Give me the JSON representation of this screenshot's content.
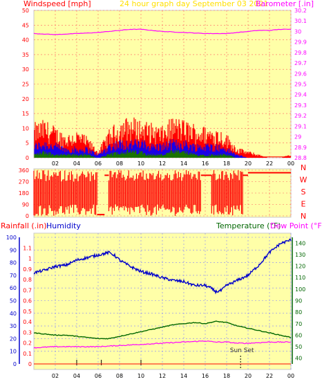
{
  "header": {
    "left_label": "Windspeed [mph]",
    "center_label": "24 hour graph day   September 03 2021",
    "right_label": "Barometer [.in]"
  },
  "colors": {
    "plot_bg": "#ffffa8",
    "frame": "#cccccc",
    "windspeed": "#ff0000",
    "gust_secondary": "#0000ff",
    "gust_tertiary": "#008000",
    "barometer": "#ff00ff",
    "direction": "#ff0000",
    "humidity": "#0000cc",
    "temperature": "#006600",
    "dewpoint": "#ff00ff",
    "rainfall": "#ff0000"
  },
  "hours_ticks": [
    "02",
    "04",
    "06",
    "08",
    "10",
    "12",
    "14",
    "16",
    "18",
    "20",
    "22",
    "00"
  ],
  "chart_data": [
    {
      "type": "line",
      "name_key": "wind_baro",
      "title": "24 hour graph day   September 03 2021",
      "ylabel": "Windspeed [mph]",
      "y2label": "Barometer [.in]",
      "x_range_hours": [
        0,
        24
      ],
      "ylim": [
        0,
        50
      ],
      "y_ticks": [
        0,
        5,
        10,
        15,
        20,
        25,
        30,
        35,
        40,
        45,
        50
      ],
      "y2lim": [
        28.8,
        30.2
      ],
      "y2_ticks": [
        "28.8",
        "28.9",
        "29",
        "29.1",
        "29.2",
        "29.3",
        "29.4",
        "29.5",
        "29.6",
        "29.7",
        "29.8",
        "29.9",
        "30",
        "30.1",
        "30.2"
      ],
      "grid": true,
      "series": [
        {
          "name": "Barometer",
          "axis": "right",
          "x": [
            0,
            2,
            4,
            6,
            8,
            9,
            10,
            11,
            12,
            14,
            16,
            17,
            18,
            19,
            20,
            21,
            22,
            23,
            24
          ],
          "y": [
            29.98,
            29.97,
            29.98,
            29.99,
            30.01,
            30.02,
            30.02,
            30.01,
            30.0,
            29.99,
            29.98,
            29.98,
            29.98,
            29.99,
            30.0,
            30.01,
            30.01,
            30.02,
            30.02
          ]
        },
        {
          "name": "Wind Gust",
          "axis": "left",
          "x": [
            0,
            1,
            2,
            3,
            4,
            5,
            6,
            7,
            8,
            9,
            10,
            11,
            12,
            13,
            14,
            15,
            16,
            17,
            18,
            19,
            20,
            21,
            22,
            23,
            24
          ],
          "y": [
            10,
            11,
            9,
            7,
            8,
            6,
            2,
            8,
            11,
            12,
            11,
            10,
            9,
            12,
            11,
            10,
            9,
            9,
            7,
            3,
            2,
            1,
            0,
            0,
            1
          ]
        },
        {
          "name": "Wind Avg",
          "axis": "left",
          "x": [
            0,
            1,
            2,
            3,
            4,
            5,
            6,
            7,
            8,
            9,
            10,
            11,
            12,
            13,
            14,
            15,
            16,
            17,
            18,
            19,
            20,
            21,
            22,
            23,
            24
          ],
          "y": [
            4,
            5,
            4,
            3,
            3,
            3,
            1,
            4,
            5,
            5,
            5,
            4,
            4,
            5,
            5,
            4,
            4,
            4,
            3,
            1,
            0,
            0,
            0,
            0,
            0
          ]
        },
        {
          "name": "Wind Low",
          "axis": "left",
          "x": [
            0,
            1,
            2,
            3,
            4,
            5,
            6,
            7,
            8,
            9,
            10,
            11,
            12,
            13,
            14,
            15,
            16,
            17,
            18,
            19,
            20,
            21,
            22,
            23,
            24
          ],
          "y": [
            1,
            2,
            1,
            1,
            1,
            1,
            0,
            1,
            2,
            2,
            2,
            1,
            1,
            2,
            2,
            1,
            1,
            1,
            1,
            0,
            0,
            0,
            0,
            0,
            0
          ]
        }
      ]
    },
    {
      "type": "scatter",
      "name_key": "wind_direction",
      "x_range_hours": [
        0,
        24
      ],
      "ylim": [
        0,
        360
      ],
      "y_ticks": [
        0,
        90,
        180,
        270,
        360
      ],
      "compass_labels": [
        "N",
        "W",
        "S",
        "E",
        "N"
      ],
      "segments": [
        {
          "x0": 0.0,
          "x1": 5.9,
          "low": 0,
          "high": 360
        },
        {
          "x0": 5.9,
          "x1": 6.6,
          "low": 0,
          "high": 20
        },
        {
          "x0": 6.6,
          "x1": 7.0,
          "low": 320,
          "high": 320
        },
        {
          "x0": 7.0,
          "x1": 15.6,
          "low": 0,
          "high": 360
        },
        {
          "x0": 15.6,
          "x1": 16.6,
          "low": 300,
          "high": 340
        },
        {
          "x0": 16.6,
          "x1": 19.5,
          "low": 0,
          "high": 360
        },
        {
          "x0": 19.5,
          "x1": 20.0,
          "low": 320,
          "high": 320
        },
        {
          "x0": 20.0,
          "x1": 24.0,
          "low": 340,
          "high": 340
        }
      ]
    },
    {
      "type": "line",
      "name_key": "rain_hum_temp",
      "left_label_rain": "Rainfall (.in)",
      "left_label_humidity": "Humidity",
      "right_label_temp": "Temperature (°F)",
      "right_label_dew": "Dew Point (°F)",
      "x_range_hours": [
        0,
        24
      ],
      "humidity_lim": [
        0,
        100
      ],
      "humidity_ticks": [
        0,
        10,
        20,
        30,
        40,
        50,
        60,
        70,
        80,
        90,
        100
      ],
      "rain_lim": [
        0,
        1.2
      ],
      "rain_ticks": [
        "0",
        "0.1",
        "0.2",
        "0.3",
        "0.4",
        "0.5",
        "0.6",
        "0.7",
        "0.8",
        "0.9",
        "1",
        "1.1"
      ],
      "temp_lim": [
        35,
        145
      ],
      "temp_ticks": [
        40,
        50,
        60,
        70,
        80,
        90,
        100,
        110,
        120,
        130,
        140
      ],
      "grid": true,
      "annotation": "Sun Set",
      "sunset_hour": 19.3,
      "event_ticks": [
        4.0,
        6.3,
        10.0
      ],
      "series": [
        {
          "name": "Humidity",
          "axis": "humidity",
          "x": [
            0,
            1,
            2,
            3,
            4,
            5,
            6,
            7,
            7.5,
            8,
            9,
            10,
            11,
            12,
            13,
            14,
            15,
            16,
            16.5,
            17,
            17.5,
            18,
            19,
            20,
            21,
            22,
            23,
            24
          ],
          "y": [
            72,
            74,
            77,
            78,
            82,
            84,
            86,
            88,
            86,
            82,
            77,
            73,
            71,
            68,
            66,
            65,
            62,
            62,
            60,
            57,
            58,
            62,
            66,
            70,
            78,
            88,
            95,
            98
          ]
        },
        {
          "name": "Temperature",
          "axis": "temp",
          "x": [
            0,
            1,
            2,
            3,
            4,
            5,
            6,
            7,
            8,
            9,
            10,
            11,
            12,
            13,
            14,
            15,
            16,
            17,
            18,
            19,
            20,
            21,
            22,
            23,
            24
          ],
          "y": [
            62,
            61,
            60,
            60,
            59,
            58,
            57,
            57,
            59,
            61,
            63,
            65,
            67,
            69,
            70,
            71,
            70,
            72,
            71,
            68,
            66,
            64,
            62,
            60,
            58
          ]
        },
        {
          "name": "Dew Point",
          "axis": "temp",
          "x": [
            0,
            2,
            4,
            6,
            8,
            10,
            12,
            14,
            16,
            17,
            18,
            19,
            20,
            22,
            24
          ],
          "y": [
            49,
            50,
            50,
            50,
            51,
            52,
            53,
            54,
            55,
            54,
            54,
            53,
            53,
            54,
            54
          ]
        },
        {
          "name": "Rainfall",
          "axis": "rain",
          "x": [
            0,
            24
          ],
          "y": [
            0,
            0
          ]
        }
      ]
    }
  ]
}
